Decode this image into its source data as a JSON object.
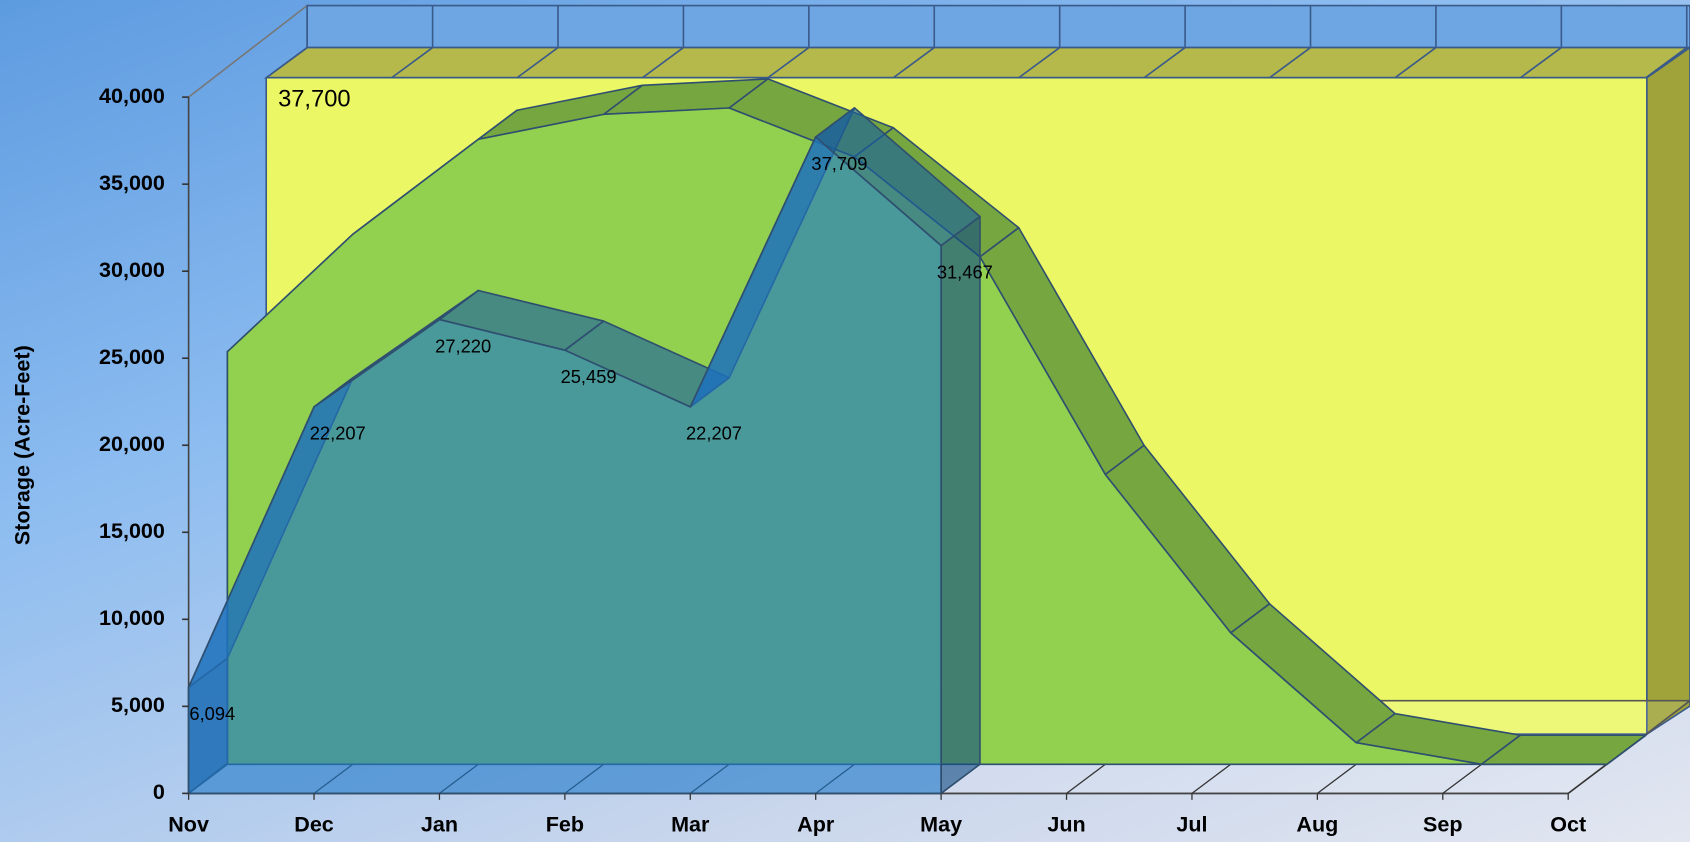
{
  "chart_data": {
    "type": "area",
    "y_label": "Storage (Acre-Feet)",
    "annotation": "37,700",
    "categories": [
      "Nov",
      "Dec",
      "Jan",
      "Feb",
      "Mar",
      "Apr",
      "May",
      "Jun",
      "Jul",
      "Aug",
      "Sep",
      "Oct"
    ],
    "series": [
      {
        "color": "#92d050",
        "values": [
          23700,
          30450,
          35900,
          37340,
          37700,
          34900,
          29150,
          16650,
          7550,
          1240,
          0,
          0
        ]
      },
      {
        "color": "#1f77c8",
        "values": [
          6094,
          22207,
          27220,
          25459,
          22207,
          37709,
          31467,
          null,
          null,
          null,
          null,
          null
        ],
        "value_labels": [
          "6,094",
          "22,207",
          "27,220",
          "25,459",
          "22,207",
          "37,709",
          "31,467",
          null,
          null,
          null,
          null,
          null
        ]
      }
    ],
    "ylim": [
      0,
      40000
    ],
    "yticks": [
      {
        "value": 0,
        "label": "0"
      },
      {
        "value": 5000,
        "label": "5,000"
      },
      {
        "value": 10000,
        "label": "10,000"
      },
      {
        "value": 15000,
        "label": "15,000"
      },
      {
        "value": 20000,
        "label": "20,000"
      },
      {
        "value": 25000,
        "label": "25,000"
      },
      {
        "value": 30000,
        "label": "30,000"
      },
      {
        "value": 35000,
        "label": "35,000"
      },
      {
        "value": 40000,
        "label": "40,000"
      }
    ]
  }
}
